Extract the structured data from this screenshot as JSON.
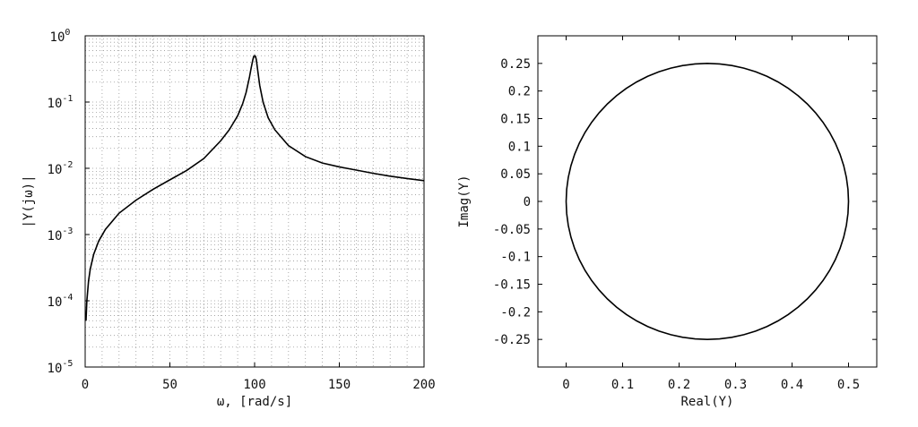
{
  "chart_data": [
    {
      "type": "line",
      "title": "",
      "xlabel": "ω,  [rad/s]",
      "ylabel": "|Y(jω)|",
      "xlim": [
        0,
        200
      ],
      "ylim": [
        1e-05,
        1
      ],
      "yscale": "log",
      "grid": true,
      "x_ticks": [
        "0",
        "50",
        "100",
        "150",
        "200"
      ],
      "y_ticks": [
        {
          "base": "10",
          "exp": "-5"
        },
        {
          "base": "10",
          "exp": "-4"
        },
        {
          "base": "10",
          "exp": "-3"
        },
        {
          "base": "10",
          "exp": "-2"
        },
        {
          "base": "10",
          "exp": "-1"
        },
        {
          "base": "10",
          "exp": "0"
        }
      ],
      "series": [
        {
          "x": [
            0.5,
            1,
            2,
            3,
            5,
            8,
            12,
            20,
            30,
            40,
            50,
            60,
            70,
            80,
            85,
            90,
            93,
            95,
            97,
            98,
            99,
            99.5,
            100,
            100.5,
            101,
            102,
            103,
            105,
            108,
            112,
            120,
            130,
            140,
            150,
            160,
            170,
            180,
            190,
            200
          ],
          "y": [
            5e-05,
            0.0001,
            0.0002,
            0.0003,
            0.0005,
            0.0008,
            0.0012,
            0.0021,
            0.0033,
            0.0048,
            0.0067,
            0.0093,
            0.014,
            0.026,
            0.038,
            0.062,
            0.095,
            0.14,
            0.24,
            0.33,
            0.44,
            0.49,
            0.5,
            0.49,
            0.44,
            0.28,
            0.18,
            0.1,
            0.058,
            0.038,
            0.022,
            0.015,
            0.012,
            0.0105,
            0.0094,
            0.0084,
            0.0076,
            0.007,
            0.0065
          ]
        }
      ]
    },
    {
      "type": "line",
      "title": "",
      "xlabel": "Real(Y)",
      "ylabel": "Imag(Y)",
      "xlim": [
        -0.05,
        0.55
      ],
      "ylim": [
        -0.3,
        0.3
      ],
      "grid": false,
      "x_ticks": [
        "0",
        "0.1",
        "0.2",
        "0.3",
        "0.4",
        "0.5"
      ],
      "y_ticks": [
        "-0.25",
        "-0.2",
        "-0.15",
        "-0.1",
        "-0.05",
        "0",
        "0.05",
        "0.1",
        "0.15",
        "0.2",
        "0.25"
      ],
      "series": [
        {
          "shape": "circle",
          "center": [
            0.25,
            0
          ],
          "radius": 0.25
        }
      ]
    }
  ]
}
